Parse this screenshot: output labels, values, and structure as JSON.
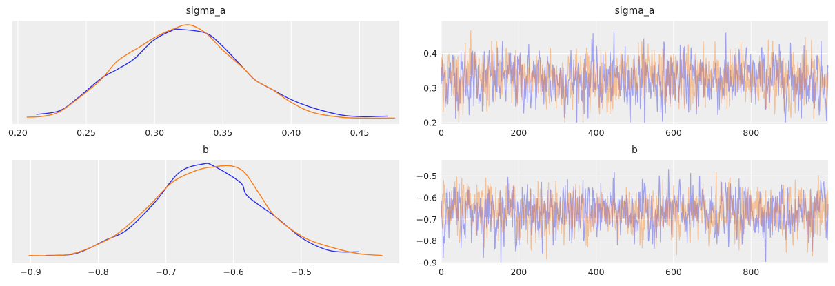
{
  "colors": {
    "chain_0": "#2a2eec",
    "chain_1": "#fa7c17",
    "background": "#eeeeee",
    "grid": "#ffffff"
  },
  "chart_data": [
    {
      "type": "line",
      "title": "sigma_a",
      "kind": "density",
      "xlim": [
        0.196,
        0.479
      ],
      "xticks": [
        "0.20",
        "0.25",
        "0.30",
        "0.35",
        "0.40",
        "0.45"
      ],
      "xtick_values": [
        0.2,
        0.25,
        0.3,
        0.35,
        0.4,
        0.45
      ],
      "y_label_hidden": true,
      "grid": true,
      "series": [
        {
          "x": [
            0.2135,
            0.2306,
            0.2448,
            0.261,
            0.273,
            0.285,
            0.299,
            0.313,
            0.319,
            0.3375,
            0.3496,
            0.3657,
            0.3738,
            0.386,
            0.4,
            0.416,
            0.436,
            0.452,
            0.4706
          ],
          "y": [
            0.03,
            0.07,
            0.22,
            0.42,
            0.52,
            0.63,
            0.83,
            0.94,
            0.95,
            0.91,
            0.77,
            0.52,
            0.4,
            0.3,
            0.19,
            0.1,
            0.025,
            0.005,
            0.012
          ]
        },
        {
          "x": [
            0.2065,
            0.2185,
            0.2306,
            0.2448,
            0.261,
            0.273,
            0.289,
            0.301,
            0.313,
            0.325,
            0.3375,
            0.3496,
            0.3657,
            0.3738,
            0.386,
            0.4,
            0.416,
            0.436,
            0.452,
            0.476
          ],
          "y": [
            0.0,
            0.01,
            0.06,
            0.21,
            0.41,
            0.61,
            0.76,
            0.87,
            0.95,
            1.0,
            0.91,
            0.73,
            0.52,
            0.4,
            0.3,
            0.16,
            0.05,
            0.0,
            -0.01,
            -0.01
          ]
        }
      ]
    },
    {
      "type": "line",
      "title": "sigma_a",
      "kind": "trace",
      "xlim": [
        0,
        999
      ],
      "ylim": [
        0.196,
        0.495
      ],
      "xticks": [
        "0",
        "200",
        "400",
        "600",
        "800"
      ],
      "xtick_values": [
        0,
        200,
        400,
        600,
        800
      ],
      "yticks": [
        "0.2",
        "0.3",
        "0.4"
      ],
      "ytick_values": [
        0.2,
        0.3,
        0.4
      ],
      "grid": true,
      "n_draws": 1000,
      "series": [
        {
          "mean": 0.325,
          "sd": 0.045
        },
        {
          "mean": 0.328,
          "sd": 0.045
        }
      ]
    },
    {
      "type": "line",
      "title": "b",
      "kind": "density",
      "xlim": [
        -0.927,
        -0.355
      ],
      "xticks": [
        "−0.9",
        "−0.8",
        "−0.7",
        "−0.6",
        "−0.5"
      ],
      "xtick_values": [
        -0.9,
        -0.8,
        -0.7,
        -0.6,
        -0.5
      ],
      "y_label_hidden": true,
      "grid": true,
      "series": [
        {
          "x": [
            -0.878,
            -0.834,
            -0.788,
            -0.757,
            -0.717,
            -0.68,
            -0.645,
            -0.63,
            -0.59,
            -0.579,
            -0.538,
            -0.497,
            -0.456,
            -0.414
          ],
          "y": [
            0.01,
            0.03,
            0.18,
            0.29,
            0.58,
            0.91,
            1.0,
            0.98,
            0.8,
            0.65,
            0.43,
            0.19,
            0.06,
            0.05
          ]
        },
        {
          "x": [
            -0.903,
            -0.844,
            -0.798,
            -0.767,
            -0.726,
            -0.691,
            -0.655,
            -0.629,
            -0.604,
            -0.584,
            -0.563,
            -0.538,
            -0.497,
            -0.456,
            -0.415,
            -0.38
          ],
          "y": [
            0.01,
            0.02,
            0.14,
            0.27,
            0.54,
            0.8,
            0.93,
            0.97,
            0.98,
            0.91,
            0.69,
            0.43,
            0.21,
            0.1,
            0.03,
            0.01
          ]
        }
      ]
    },
    {
      "type": "line",
      "title": "b",
      "kind": "trace",
      "xlim": [
        0,
        999
      ],
      "ylim": [
        -0.903,
        -0.425
      ],
      "xticks": [
        "0",
        "200",
        "400",
        "600",
        "800"
      ],
      "xtick_values": [
        0,
        200,
        400,
        600,
        800
      ],
      "yticks": [
        "−0.5",
        "−0.6",
        "−0.7",
        "−0.8",
        "−0.9"
      ],
      "ytick_values": [
        -0.5,
        -0.6,
        -0.7,
        -0.8,
        -0.9
      ],
      "grid": true,
      "n_draws": 1000,
      "series": [
        {
          "mean": -0.668,
          "sd": 0.065
        },
        {
          "mean": -0.665,
          "sd": 0.065
        }
      ]
    }
  ]
}
